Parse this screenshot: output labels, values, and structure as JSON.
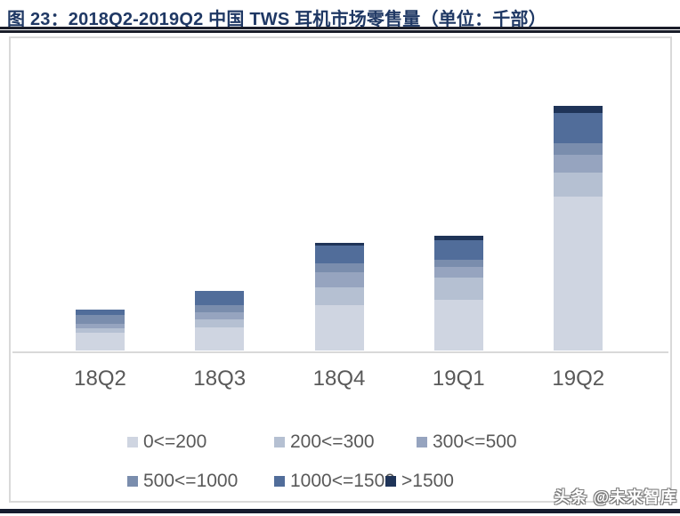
{
  "header": {
    "title": "图 23：2018Q2-2019Q2 中国 TWS 耳机市场零售量（单位：千部）"
  },
  "watermark": {
    "text": "头条 @未来智库"
  },
  "chart_data": {
    "type": "bar",
    "variant": "stacked",
    "title": "2018Q2-2019Q2 中国 TWS 耳机市场零售量",
    "unit": "千部",
    "categories": [
      "18Q2",
      "18Q3",
      "18Q4",
      "19Q1",
      "19Q2"
    ],
    "series": [
      {
        "name": "0<=200",
        "color": "#cfd5e1",
        "values": [
          20,
          26,
          51,
          57,
          173
        ]
      },
      {
        "name": "200<=300",
        "color": "#b5c0d2",
        "values": [
          5,
          9,
          20,
          25,
          27
        ]
      },
      {
        "name": "300<=500",
        "color": "#96a4bf",
        "values": [
          5,
          8,
          17,
          12,
          20
        ]
      },
      {
        "name": "500<=1000",
        "color": "#7a8dad",
        "values": [
          10,
          8,
          10,
          8,
          13
        ]
      },
      {
        "name": "1000<=1500",
        "color": "#516d9a",
        "values": [
          6,
          16,
          20,
          22,
          34
        ]
      },
      {
        "name": ">1500",
        "color": "#1f3458",
        "values": [
          0,
          0,
          3,
          5,
          8
        ]
      }
    ],
    "totals_relative": [
      46,
      67,
      121,
      129,
      275
    ],
    "y_axis": {
      "visible": false,
      "scale": "relative (no tick labels shown in figure)"
    },
    "grid": "off",
    "legend": {
      "position": "bottom",
      "rows": [
        [
          "0<=200",
          "200<=300",
          "300<=500"
        ],
        [
          "500<=1000",
          "1000<=1500",
          ">1500"
        ]
      ]
    }
  }
}
